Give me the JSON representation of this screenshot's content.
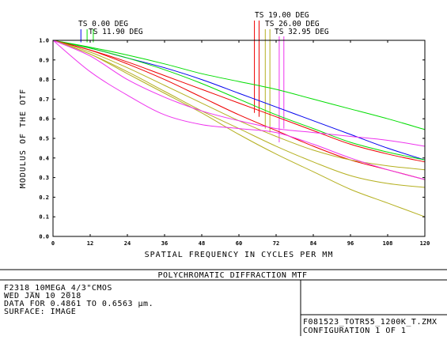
{
  "chart_data": {
    "type": "line",
    "title": "POLYCHROMATIC DIFFRACTION MTF",
    "xlabel": "SPATIAL FREQUENCY IN CYCLES PER MM",
    "ylabel": "MODULUS OF THE OTF",
    "xlim": [
      0,
      120
    ],
    "ylim": [
      0,
      1
    ],
    "xticks": [
      0,
      12,
      24,
      36,
      48,
      60,
      72,
      84,
      96,
      108,
      120
    ],
    "xtick_labels": [
      "0",
      "12",
      "24",
      "36",
      "48",
      "60",
      "72",
      "84",
      "96",
      "108",
      "120"
    ],
    "yticks": [
      0,
      0.1,
      0.2,
      0.3,
      0.4,
      0.5,
      0.6,
      0.7,
      0.8,
      0.9,
      1.0
    ],
    "ytick_labels": [
      "0.0",
      "0.1",
      "0.2",
      "0.3",
      "0.4",
      "0.5",
      "0.6",
      "0.7",
      "0.8",
      "0.9",
      "1.0"
    ],
    "grid": false,
    "x": [
      0,
      12,
      24,
      36,
      48,
      60,
      72,
      84,
      96,
      108,
      120
    ],
    "series": [
      {
        "color": "#0000ee",
        "values": [
          1.0,
          0.96,
          0.91,
          0.86,
          0.8,
          0.73,
          0.66,
          0.59,
          0.52,
          0.45,
          0.39
        ]
      },
      {
        "color": "#00dd00",
        "values": [
          1.0,
          0.965,
          0.925,
          0.88,
          0.83,
          0.79,
          0.75,
          0.7,
          0.65,
          0.6,
          0.545
        ]
      },
      {
        "color": "#ee0000",
        "values": [
          1.0,
          0.95,
          0.89,
          0.82,
          0.75,
          0.68,
          0.61,
          0.54,
          0.47,
          0.42,
          0.38
        ]
      },
      {
        "color": "#00dd00",
        "values": [
          1.0,
          0.96,
          0.91,
          0.85,
          0.78,
          0.7,
          0.62,
          0.55,
          0.48,
          0.43,
          0.39
        ]
      },
      {
        "color": "#ee0000",
        "values": [
          1.0,
          0.95,
          0.88,
          0.8,
          0.71,
          0.62,
          0.54,
          0.46,
          0.39,
          0.34,
          0.29
        ]
      },
      {
        "color": "#b5b020",
        "values": [
          1.0,
          0.94,
          0.86,
          0.77,
          0.68,
          0.59,
          0.51,
          0.44,
          0.39,
          0.36,
          0.34
        ]
      },
      {
        "color": "#b5b020",
        "values": [
          1.0,
          0.93,
          0.84,
          0.74,
          0.64,
          0.55,
          0.46,
          0.38,
          0.31,
          0.27,
          0.25
        ]
      },
      {
        "color": "#b5b020",
        "values": [
          1.0,
          0.93,
          0.83,
          0.73,
          0.63,
          0.52,
          0.42,
          0.33,
          0.24,
          0.17,
          0.1
        ]
      },
      {
        "color": "#ee33ee",
        "values": [
          1.0,
          0.92,
          0.8,
          0.71,
          0.64,
          0.59,
          0.55,
          0.53,
          0.51,
          0.49,
          0.46
        ]
      },
      {
        "color": "#ee33ee",
        "values": [
          1.0,
          0.84,
          0.72,
          0.62,
          0.57,
          0.55,
          0.53,
          0.47,
          0.4,
          0.34,
          0.29
        ]
      }
    ],
    "legend": {
      "placement": "top",
      "entries": [
        "TS 0.00 DEG",
        "TS 11.90 DEG",
        "TS 19.00 DEG",
        "TS 26.00 DEG",
        "TS 32.95 DEG"
      ]
    },
    "legend_markers": [
      {
        "freq": 9,
        "value": 0.99,
        "color": "#0000ee"
      },
      {
        "freq": 11,
        "value": 0.99,
        "color": "#00dd00"
      },
      {
        "freq": 13,
        "value": 0.99,
        "color": "#00dd00"
      },
      {
        "freq": 65,
        "value": 0.63,
        "color": "#ee0000"
      },
      {
        "freq": 66.5,
        "value": 0.61,
        "color": "#ee0000"
      },
      {
        "freq": 68.5,
        "value": 0.55,
        "color": "#b5b020"
      },
      {
        "freq": 70,
        "value": 0.53,
        "color": "#b5b020"
      },
      {
        "freq": 73,
        "value": 0.48,
        "color": "#ee33ee"
      },
      {
        "freq": 74.5,
        "value": 0.55,
        "color": "#ee33ee"
      }
    ]
  },
  "info_block": {
    "lens_name": "F2318_10MEGA_4/3\"CMOS",
    "date": "WED JAN 10 2018",
    "data_range": "DATA FOR 0.4861 TO 0.6563 µm.",
    "surface": "SURFACE: IMAGE",
    "file_name": "F081523_TOTR55_1200K_T.ZMX",
    "configuration": "CONFIGURATION 1 OF 1"
  }
}
